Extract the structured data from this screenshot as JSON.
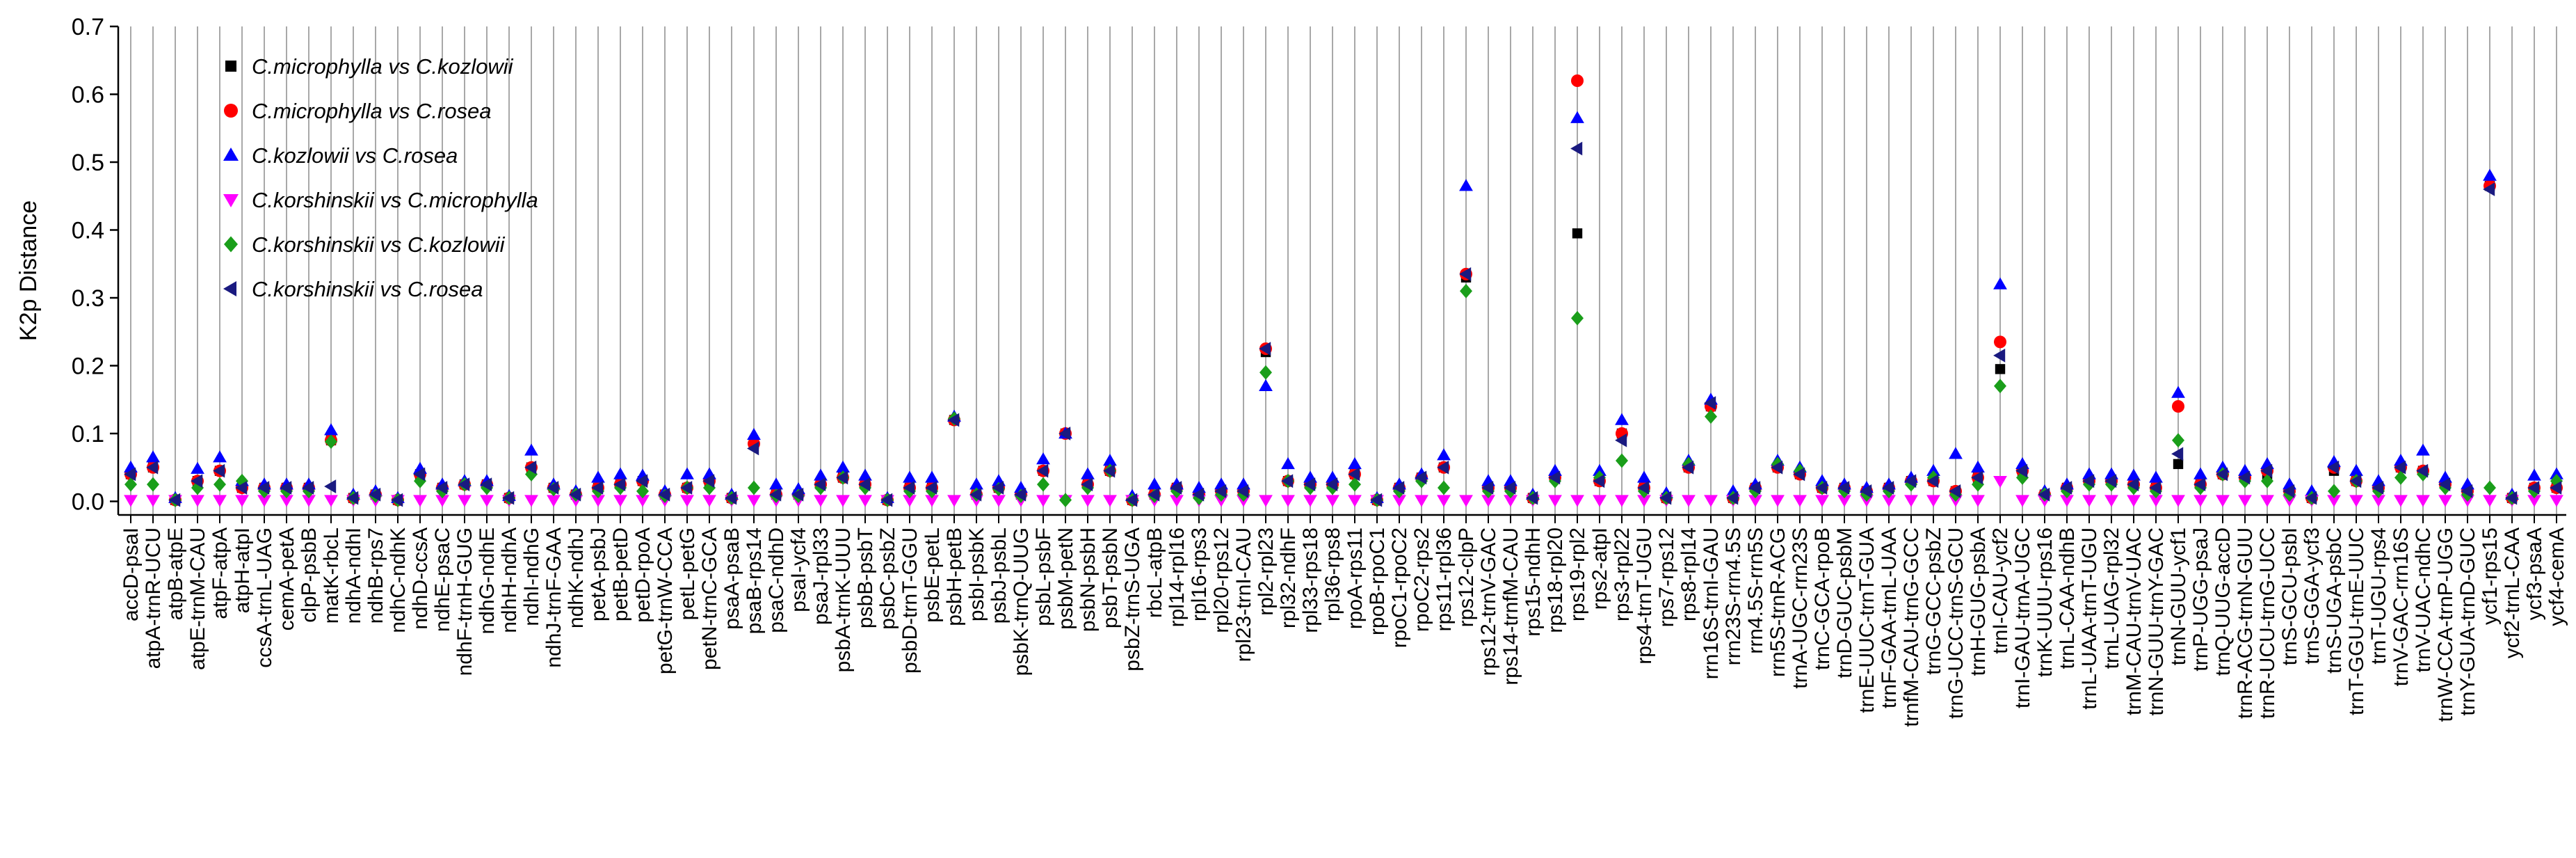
{
  "chart_data": {
    "type": "scatter",
    "ylabel": "K2p Distance",
    "xlabel": "",
    "ylim": [
      -0.02,
      0.7
    ],
    "yticks": [
      "0.0",
      "0.1",
      "0.2",
      "0.3",
      "0.4",
      "0.5",
      "0.6",
      "0.7"
    ],
    "grid": "vertical lines at every category",
    "legend_position": "top-left",
    "categories": [
      "accD-psaI",
      "atpA-trnR-UCU",
      "atpB-atpE",
      "atpE-trnM-CAU",
      "atpF-atpA",
      "atpH-atpI",
      "ccsA-trnL-UAG",
      "cemA-petA",
      "clpP-psbB",
      "matK-rbcL",
      "ndhA-ndhI",
      "ndhB-rps7",
      "ndhC-ndhK",
      "ndhD-ccsA",
      "ndhE-psaC",
      "ndhF-trnH-GUG",
      "ndhG-ndhE",
      "ndhH-ndhA",
      "ndhI-ndhG",
      "ndhJ-trnF-GAA",
      "ndhK-ndhJ",
      "petA-psbJ",
      "petB-petD",
      "petD-rpoA",
      "petG-trnW-CCA",
      "petL-petG",
      "petN-trnC-GCA",
      "psaA-psaB",
      "psaB-rps14",
      "psaC-ndhD",
      "psaI-ycf4",
      "psaJ-rpl33",
      "psbA-trnK-UUU",
      "psbB-psbT",
      "psbC-psbZ",
      "psbD-trnT-GGU",
      "psbE-petL",
      "psbH-petB",
      "psbI-psbK",
      "psbJ-psbL",
      "psbK-trnQ-UUG",
      "psbL-psbF",
      "psbM-petN",
      "psbN-psbH",
      "psbT-psbN",
      "psbZ-trnS-UGA",
      "rbcL-atpB",
      "rpl14-rpl16",
      "rpl16-rps3",
      "rpl20-rps12",
      "rpl23-trnI-CAU",
      "rpl2-rpl23",
      "rpl32-ndhF",
      "rpl33-rps18",
      "rpl36-rps8",
      "rpoA-rps11",
      "rpoB-rpoC1",
      "rpoC1-rpoC2",
      "rpoC2-rps2",
      "rps11-rpl36",
      "rps12-clpP",
      "rps12-trnV-GAC",
      "rps14-trnfM-CAU",
      "rps15-ndhH",
      "rps18-rpl20",
      "rps19-rpl2",
      "rps2-atpI",
      "rps3-rpl22",
      "rps4-trnT-UGU",
      "rps7-rps12",
      "rps8-rpl14",
      "rrn16S-trnI-GAU",
      "rrn23S-rrn4.5S",
      "rrn4.5S-rrn5S",
      "rrn5S-trnR-ACG",
      "trnA-UGC-rrn23S",
      "trnC-GCA-rpoB",
      "trnD-GUC-psbM",
      "trnE-UUC-trnT-GUA",
      "trnF-GAA-trnL-UAA",
      "trnfM-CAU-trnG-GCC",
      "trnG-GCC-psbZ",
      "trnG-UCC-trnS-GCU",
      "trnH-GUG-psbA",
      "trnI-CAU-ycf2",
      "trnI-GAU-trnA-UGC",
      "trnK-UUU-rps16",
      "trnL-CAA-ndhB",
      "trnL-UAA-trnT-UGU",
      "trnL-UAG-rpl32",
      "trnM-CAU-trnV-UAC",
      "trnN-GUU-trnY-GAC",
      "trnN-GUU-ycf1",
      "trnP-UGG-psaJ",
      "trnQ-UUG-accD",
      "trnR-ACG-trnN-GUU",
      "trnR-UCU-trnG-UCC",
      "trnS-GCU-psbI",
      "trnS-GGA-ycf3",
      "trnS-UGA-psbC",
      "trnT-GGU-trnE-UUC",
      "trnT-UGU-rps4",
      "trnV-GAC-rrn16S",
      "trnV-UAC-ndhC",
      "trnW-CCA-trnP-UGG",
      "trnY-GUA-trnD-GUC",
      "ycf1-rps15",
      "ycf2-trnL-CAA",
      "ycf3-psaA",
      "ycf4-cemA"
    ],
    "series": [
      {
        "name": "C.microphylla vs C.kozlowii",
        "color": "#000000",
        "marker": "square",
        "values": [
          0.04,
          0.05,
          0.002,
          0.03,
          0.045,
          0.02,
          0.02,
          0.02,
          0.02,
          0.09,
          0.005,
          0.01,
          0.002,
          0.04,
          0.02,
          0.025,
          0.025,
          0.005,
          0.05,
          0.02,
          0.01,
          0.02,
          0.025,
          0.03,
          0.01,
          0.02,
          0.03,
          0.005,
          0.085,
          0.01,
          0.01,
          0.025,
          0.035,
          0.025,
          0.002,
          0.02,
          0.02,
          0.12,
          0.01,
          0.02,
          0.01,
          0.045,
          0.1,
          0.025,
          0.045,
          0.002,
          0.01,
          0.02,
          0.01,
          0.015,
          0.015,
          0.22,
          0.03,
          0.025,
          0.025,
          0.04,
          0.002,
          0.02,
          0.035,
          0.05,
          0.33,
          0.02,
          0.02,
          0.005,
          0.035,
          0.395,
          0.03,
          0.1,
          0.02,
          0.005,
          0.05,
          0.14,
          0.005,
          0.02,
          0.05,
          0.04,
          0.02,
          0.02,
          0.015,
          0.02,
          0.03,
          0.03,
          0.015,
          0.035,
          0.195,
          0.045,
          0.01,
          0.02,
          0.03,
          0.03,
          0.025,
          0.02,
          0.055,
          0.025,
          0.04,
          0.035,
          0.04,
          0.015,
          0.005,
          0.045,
          0.03,
          0.02,
          0.05,
          0.045,
          0.025,
          0.015,
          0.465,
          0.005,
          0.02,
          0.02
        ]
      },
      {
        "name": "C.microphylla vs C.rosea",
        "color": "#ff0000",
        "marker": "circle",
        "values": [
          0.04,
          0.05,
          0.002,
          0.03,
          0.045,
          0.02,
          0.02,
          0.02,
          0.02,
          0.09,
          0.005,
          0.01,
          0.002,
          0.04,
          0.02,
          0.025,
          0.025,
          0.005,
          0.05,
          0.02,
          0.01,
          0.02,
          0.025,
          0.03,
          0.01,
          0.02,
          0.03,
          0.005,
          0.085,
          0.01,
          0.01,
          0.025,
          0.035,
          0.025,
          0.002,
          0.02,
          0.02,
          0.12,
          0.01,
          0.02,
          0.01,
          0.045,
          0.1,
          0.025,
          0.045,
          0.002,
          0.01,
          0.02,
          0.01,
          0.015,
          0.015,
          0.225,
          0.03,
          0.025,
          0.025,
          0.04,
          0.002,
          0.02,
          0.035,
          0.05,
          0.335,
          0.02,
          0.02,
          0.005,
          0.035,
          0.62,
          0.03,
          0.1,
          0.02,
          0.005,
          0.05,
          0.14,
          0.005,
          0.02,
          0.05,
          0.04,
          0.02,
          0.02,
          0.015,
          0.02,
          0.03,
          0.03,
          0.015,
          0.035,
          0.235,
          0.045,
          0.01,
          0.02,
          0.03,
          0.03,
          0.025,
          0.02,
          0.14,
          0.025,
          0.04,
          0.035,
          0.045,
          0.015,
          0.005,
          0.05,
          0.03,
          0.02,
          0.05,
          0.045,
          0.025,
          0.015,
          0.465,
          0.005,
          0.02,
          0.02
        ]
      },
      {
        "name": "C.kozlowii vs C.rosea",
        "color": "#0000ff",
        "marker": "triangle-up",
        "values": [
          0.05,
          0.065,
          0.005,
          0.048,
          0.065,
          0.03,
          0.025,
          0.025,
          0.025,
          0.105,
          0.01,
          0.015,
          0.005,
          0.048,
          0.025,
          0.03,
          0.03,
          0.008,
          0.075,
          0.025,
          0.015,
          0.035,
          0.04,
          0.038,
          0.015,
          0.04,
          0.04,
          0.01,
          0.098,
          0.025,
          0.018,
          0.038,
          0.05,
          0.038,
          0.005,
          0.035,
          0.035,
          0.125,
          0.025,
          0.03,
          0.02,
          0.062,
          0.1,
          0.04,
          0.06,
          0.008,
          0.025,
          0.025,
          0.02,
          0.025,
          0.025,
          0.17,
          0.055,
          0.035,
          0.035,
          0.055,
          0.005,
          0.025,
          0.04,
          0.068,
          0.465,
          0.03,
          0.03,
          0.01,
          0.045,
          0.565,
          0.045,
          0.12,
          0.035,
          0.012,
          0.06,
          0.15,
          0.015,
          0.025,
          0.06,
          0.05,
          0.03,
          0.025,
          0.02,
          0.025,
          0.035,
          0.045,
          0.07,
          0.05,
          0.32,
          0.055,
          0.015,
          0.025,
          0.04,
          0.04,
          0.038,
          0.035,
          0.16,
          0.04,
          0.05,
          0.045,
          0.055,
          0.025,
          0.015,
          0.058,
          0.045,
          0.03,
          0.06,
          0.075,
          0.035,
          0.025,
          0.48,
          0.01,
          0.038,
          0.04
        ]
      },
      {
        "name": "C.korshinskii vs C.microphylla",
        "color": "#ff00ff",
        "marker": "triangle-down",
        "values": [
          0.002,
          0.002,
          0.002,
          0.002,
          0.002,
          0.002,
          0.002,
          0.002,
          0.002,
          0.002,
          0.002,
          0.002,
          0.002,
          0.002,
          0.002,
          0.002,
          0.002,
          0.002,
          0.002,
          0.002,
          0.002,
          0.002,
          0.002,
          0.002,
          0.002,
          0.002,
          0.002,
          0.002,
          0.002,
          0.002,
          0.002,
          0.002,
          0.002,
          0.002,
          0.002,
          0.002,
          0.002,
          0.002,
          0.002,
          0.002,
          0.002,
          0.002,
          0.002,
          0.002,
          0.002,
          0.002,
          0.002,
          0.002,
          0.002,
          0.002,
          0.002,
          0.002,
          0.002,
          0.002,
          0.002,
          0.002,
          0.002,
          0.002,
          0.002,
          0.002,
          0.002,
          0.002,
          0.002,
          0.002,
          0.002,
          0.002,
          0.002,
          0.002,
          0.002,
          0.002,
          0.002,
          0.002,
          0.002,
          0.002,
          0.002,
          0.002,
          0.002,
          0.002,
          0.002,
          0.002,
          0.002,
          0.002,
          0.002,
          0.002,
          0.03,
          0.002,
          0.002,
          0.002,
          0.002,
          0.002,
          0.002,
          0.002,
          0.002,
          0.002,
          0.002,
          0.002,
          0.002,
          0.002,
          0.002,
          0.002,
          0.002,
          0.002,
          0.002,
          0.002,
          0.002,
          0.002,
          0.002,
          0.002,
          0.002,
          0.002
        ]
      },
      {
        "name": "C.korshinskii vs C.kozlowii",
        "color": "#1a9e1a",
        "marker": "diamond",
        "values": [
          0.025,
          0.025,
          0.002,
          0.02,
          0.025,
          0.03,
          0.015,
          0.015,
          0.015,
          0.088,
          0.005,
          0.008,
          0.002,
          0.03,
          0.015,
          0.025,
          0.02,
          0.005,
          0.04,
          0.018,
          0.01,
          0.015,
          0.02,
          0.015,
          0.008,
          0.02,
          0.02,
          0.005,
          0.02,
          0.008,
          0.008,
          0.02,
          0.035,
          0.02,
          0.002,
          0.015,
          0.015,
          0.122,
          0.01,
          0.018,
          0.008,
          0.025,
          0.002,
          0.02,
          0.045,
          0.002,
          0.008,
          0.015,
          0.005,
          0.01,
          0.01,
          0.19,
          0.03,
          0.02,
          0.02,
          0.025,
          0.002,
          0.015,
          0.03,
          0.02,
          0.31,
          0.015,
          0.015,
          0.005,
          0.03,
          0.27,
          0.035,
          0.06,
          0.015,
          0.005,
          0.055,
          0.125,
          0.005,
          0.015,
          0.055,
          0.045,
          0.02,
          0.015,
          0.01,
          0.015,
          0.025,
          0.035,
          0.01,
          0.025,
          0.17,
          0.035,
          0.01,
          0.015,
          0.025,
          0.025,
          0.02,
          0.015,
          0.09,
          0.02,
          0.04,
          0.03,
          0.03,
          0.01,
          0.005,
          0.015,
          0.03,
          0.015,
          0.035,
          0.04,
          0.02,
          0.01,
          0.02,
          0.005,
          0.015,
          0.03
        ]
      },
      {
        "name": "C.korshinskii vs C.rosea",
        "color": "#1a1a80",
        "marker": "triangle-left",
        "values": [
          0.04,
          0.05,
          0.002,
          0.03,
          0.045,
          0.02,
          0.02,
          0.02,
          0.02,
          0.022,
          0.005,
          0.01,
          0.002,
          0.04,
          0.02,
          0.025,
          0.025,
          0.005,
          0.05,
          0.02,
          0.01,
          0.02,
          0.025,
          0.03,
          0.01,
          0.02,
          0.03,
          0.005,
          0.078,
          0.01,
          0.01,
          0.025,
          0.035,
          0.025,
          0.002,
          0.02,
          0.02,
          0.12,
          0.01,
          0.02,
          0.01,
          0.045,
          0.1,
          0.025,
          0.045,
          0.002,
          0.01,
          0.02,
          0.01,
          0.015,
          0.015,
          0.225,
          0.03,
          0.025,
          0.025,
          0.04,
          0.002,
          0.02,
          0.035,
          0.05,
          0.335,
          0.02,
          0.02,
          0.005,
          0.035,
          0.52,
          0.03,
          0.09,
          0.02,
          0.005,
          0.05,
          0.145,
          0.005,
          0.02,
          0.05,
          0.04,
          0.02,
          0.02,
          0.015,
          0.02,
          0.03,
          0.03,
          0.015,
          0.035,
          0.215,
          0.045,
          0.01,
          0.02,
          0.03,
          0.03,
          0.025,
          0.02,
          0.07,
          0.025,
          0.04,
          0.035,
          0.045,
          0.015,
          0.005,
          0.05,
          0.03,
          0.02,
          0.05,
          0.045,
          0.025,
          0.015,
          0.46,
          0.005,
          0.02,
          0.02
        ]
      }
    ]
  }
}
